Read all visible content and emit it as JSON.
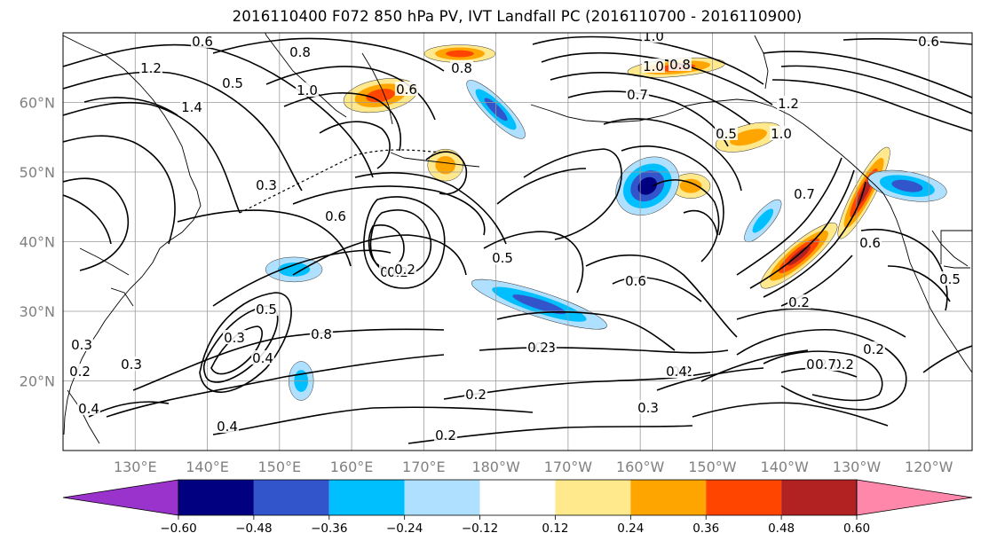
{
  "title": "2016110400 F072 850 hPa PV, IVT Landfall PC (2016110700 - 2016110900)",
  "map": {
    "projection": "PlateCarree",
    "lon_range": [
      120,
      246
    ],
    "lat_range": [
      10,
      70
    ],
    "lon_tick_labels": [
      "130°E",
      "140°E",
      "150°E",
      "160°E",
      "170°E",
      "180°W",
      "170°W",
      "160°W",
      "150°W",
      "140°W",
      "130°W",
      "120°W"
    ],
    "lat_tick_labels": [
      "20°N",
      "30°N",
      "40°N",
      "50°N",
      "60°N"
    ],
    "gridlines": true,
    "coastlines": true
  },
  "colorbar": {
    "orientation": "horizontal",
    "extend": "both",
    "ticks": [
      "−0.60",
      "−0.48",
      "−0.36",
      "−0.24",
      "−0.12",
      "0.12",
      "0.24",
      "0.36",
      "0.48",
      "0.60"
    ],
    "colors": [
      "#9933cc",
      "#000080",
      "#3355cc",
      "#00bfff",
      "#b0e0ff",
      "#ffffff",
      "#ffe98c",
      "#ffa500",
      "#ff4500",
      "#b22222",
      "#ff88aa"
    ]
  },
  "chart_data": {
    "type": "map",
    "title": "2016110400 F072 850 hPa PV, IVT Landfall PC (2016110700 - 2016110900)",
    "filled_field": {
      "levels": [
        -0.6,
        -0.48,
        -0.36,
        -0.24,
        -0.12,
        0.12,
        0.24,
        0.36,
        0.48,
        0.6
      ],
      "features": [
        {
          "sign": "positive",
          "lon": 222,
          "lat": 38,
          "peak": 0.6
        },
        {
          "sign": "positive",
          "lon": 231,
          "lat": 47,
          "peak": 0.6
        },
        {
          "sign": "positive",
          "lon": 164,
          "lat": 61,
          "peak": 0.48
        },
        {
          "sign": "positive",
          "lon": 175,
          "lat": 67,
          "peak": 0.48
        },
        {
          "sign": "positive",
          "lon": 205,
          "lat": 65,
          "peak": 0.48
        },
        {
          "sign": "positive",
          "lon": 215,
          "lat": 55,
          "peak": 0.36
        },
        {
          "sign": "positive",
          "lon": 173,
          "lat": 51,
          "peak": 0.36
        },
        {
          "sign": "positive",
          "lon": 207,
          "lat": 48,
          "peak": 0.36
        },
        {
          "sign": "negative",
          "lon": 201,
          "lat": 48,
          "peak": -0.6
        },
        {
          "sign": "negative",
          "lon": 186,
          "lat": 31,
          "peak": -0.48
        },
        {
          "sign": "negative",
          "lon": 180,
          "lat": 59,
          "peak": -0.48
        },
        {
          "sign": "negative",
          "lon": 217,
          "lat": 43,
          "peak": -0.36
        },
        {
          "sign": "negative",
          "lon": 237,
          "lat": 48,
          "peak": -0.48
        },
        {
          "sign": "negative",
          "lon": 152,
          "lat": 36,
          "peak": -0.36
        },
        {
          "sign": "negative",
          "lon": 153,
          "lat": 20,
          "peak": -0.36
        }
      ]
    },
    "contour_labels": [
      "1.2",
      "0.6",
      "0.8",
      "1.0",
      "0.5",
      "1.4",
      "0.6",
      "0.8",
      "1.0",
      "0.8",
      "1.0",
      "0.7",
      "0.6",
      "1.2",
      "1.0",
      "0.5",
      "0.6",
      "0.5",
      "0.3",
      "0.5",
      "0.5",
      "0.8",
      "0.4",
      "0.3",
      "0.6",
      "0.3",
      "0.2",
      "0.3",
      "0.3",
      "0.4",
      "0.2",
      "0.2",
      "0.2",
      "0.2",
      "0.2",
      "0.2",
      "0.7",
      "0.6",
      "0.5",
      "0.2",
      "0.2",
      "0.4",
      "0.3",
      "0.2",
      "0.2",
      "0.7",
      "0.4"
    ]
  }
}
